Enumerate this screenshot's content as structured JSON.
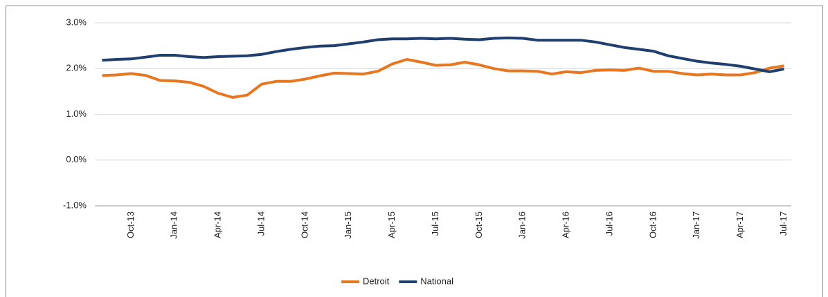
{
  "chart_data": {
    "type": "line",
    "categories": [
      null,
      null,
      "Oct-13",
      null,
      null,
      "Jan-14",
      null,
      null,
      "Apr-14",
      null,
      null,
      "Jul-14",
      null,
      null,
      "Oct-14",
      null,
      null,
      "Jan-15",
      null,
      null,
      "Apr-15",
      null,
      null,
      "Jul-15",
      null,
      null,
      "Oct-15",
      null,
      null,
      "Jan-16",
      null,
      null,
      "Apr-16",
      null,
      null,
      "Jul-16",
      null,
      null,
      "Oct-16",
      null,
      null,
      "Jan-17",
      null,
      null,
      "Apr-17",
      null,
      null,
      "Jul-17"
    ],
    "series": [
      {
        "name": "Detroit",
        "color": "#e87722",
        "values": [
          1.85,
          1.86,
          1.89,
          1.85,
          1.74,
          1.73,
          1.7,
          1.61,
          1.46,
          1.37,
          1.42,
          1.66,
          1.72,
          1.72,
          1.77,
          1.84,
          1.9,
          1.89,
          1.88,
          1.94,
          2.1,
          2.2,
          2.14,
          2.07,
          2.08,
          2.14,
          2.08,
          2.0,
          1.95,
          1.95,
          1.94,
          1.88,
          1.93,
          1.91,
          1.96,
          1.97,
          1.96,
          2.01,
          1.94,
          1.94,
          1.89,
          1.86,
          1.88,
          1.86,
          1.86,
          1.91,
          2.01,
          2.06
        ]
      },
      {
        "name": "National",
        "color": "#1f3f6e",
        "values": [
          2.18,
          2.2,
          2.21,
          2.25,
          2.29,
          2.29,
          2.26,
          2.24,
          2.26,
          2.27,
          2.28,
          2.31,
          2.37,
          2.42,
          2.46,
          2.49,
          2.5,
          2.54,
          2.58,
          2.63,
          2.65,
          2.65,
          2.66,
          2.65,
          2.66,
          2.64,
          2.63,
          2.66,
          2.67,
          2.66,
          2.62,
          2.62,
          2.62,
          2.62,
          2.58,
          2.52,
          2.46,
          2.42,
          2.38,
          2.28,
          2.22,
          2.16,
          2.12,
          2.09,
          2.05,
          1.99,
          1.93,
          1.99
        ]
      }
    ],
    "ylim": [
      -1,
      3
    ],
    "yticks": [
      {
        "value": -1,
        "label": "-1.0%"
      },
      {
        "value": 0,
        "label": "0.0%"
      },
      {
        "value": 1,
        "label": "1.0%"
      },
      {
        "value": 2,
        "label": "2.0%"
      },
      {
        "value": 3,
        "label": "3.0%"
      }
    ],
    "grid": true,
    "legend": "bottom"
  }
}
